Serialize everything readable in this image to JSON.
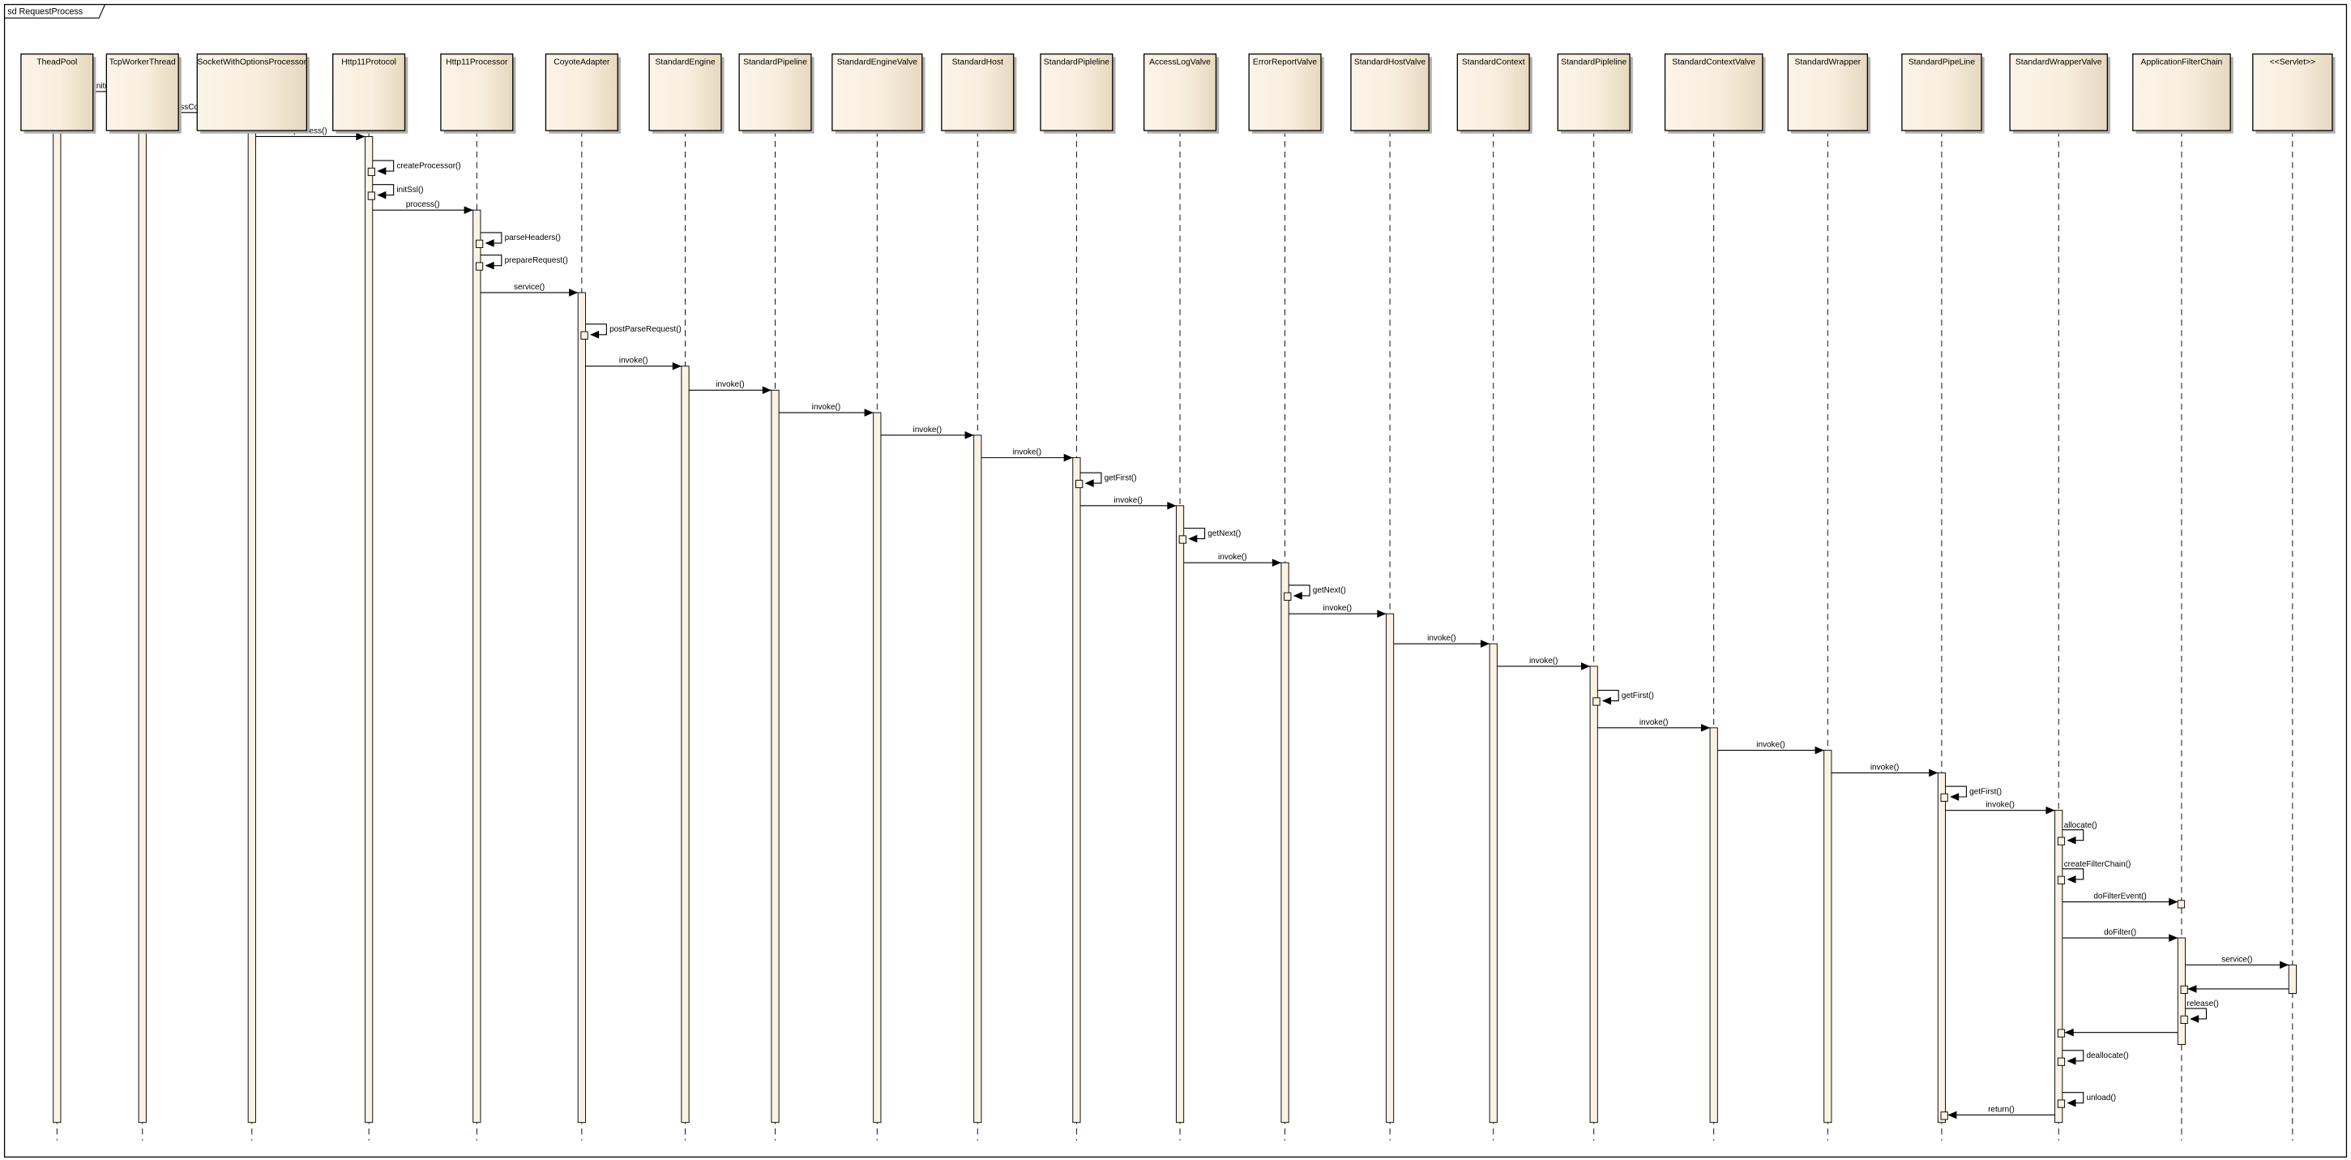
{
  "diagram": {
    "frame_title": "sd RequestProcess",
    "colors": {
      "participant_fill_light": "#fbf4e8",
      "participant_fill_dark": "#e6d8bf",
      "activation_fill": "#fbf2e4",
      "line": "#000000",
      "shadow": "#b0b0b0"
    },
    "participants": [
      "TheadPool",
      "TcpWorkerThread",
      "SocketWithOptionsProcessor",
      "Http11Protocol",
      "Http11Processor",
      "CoyoteAdapter",
      "StandardEngine",
      "StandardPipeline",
      "StandardEngineValve",
      "StandardHost",
      "StandardPipleline",
      "AccessLogValve",
      "ErrorReportValve",
      "StandardHostValve",
      "StandardContext",
      "StandardPipleline",
      "StandardContextValve",
      "StandardWrapper",
      "StandardPipeLine",
      "StandardWrapperValve",
      "ApplicationFilterChain",
      "<<Servlet>>"
    ],
    "messages": [
      {
        "label": "runit()",
        "from": 0,
        "to": 1
      },
      {
        "label": "processConnection()",
        "from": 1,
        "to": 2
      },
      {
        "label": "process()",
        "from": 2,
        "to": 3
      },
      {
        "label": "createProcessor()",
        "from": 3,
        "to": 3
      },
      {
        "label": "initSsl()",
        "from": 3,
        "to": 3
      },
      {
        "label": "process()",
        "from": 3,
        "to": 4
      },
      {
        "label": "parseHeaders()",
        "from": 4,
        "to": 4
      },
      {
        "label": "prepareRequest()",
        "from": 4,
        "to": 4
      },
      {
        "label": "service()",
        "from": 4,
        "to": 5
      },
      {
        "label": "postParseRequest()",
        "from": 5,
        "to": 5
      },
      {
        "label": "invoke()",
        "from": 5,
        "to": 6
      },
      {
        "label": "invoke()",
        "from": 6,
        "to": 7
      },
      {
        "label": "invoke()",
        "from": 7,
        "to": 8
      },
      {
        "label": "invoke()",
        "from": 8,
        "to": 9
      },
      {
        "label": "invoke()",
        "from": 9,
        "to": 10
      },
      {
        "label": "getFirst()",
        "from": 10,
        "to": 10
      },
      {
        "label": "invoke()",
        "from": 10,
        "to": 11
      },
      {
        "label": "getNext()",
        "from": 11,
        "to": 11
      },
      {
        "label": "invoke()",
        "from": 11,
        "to": 12
      },
      {
        "label": "getNext()",
        "from": 12,
        "to": 12
      },
      {
        "label": "invoke()",
        "from": 12,
        "to": 13
      },
      {
        "label": "invoke()",
        "from": 13,
        "to": 14
      },
      {
        "label": "invoke()",
        "from": 14,
        "to": 15
      },
      {
        "label": "getFirst()",
        "from": 15,
        "to": 15
      },
      {
        "label": "invoke()",
        "from": 15,
        "to": 16
      },
      {
        "label": "invoke()",
        "from": 16,
        "to": 17
      },
      {
        "label": "invoke()",
        "from": 17,
        "to": 18
      },
      {
        "label": "getFirst()",
        "from": 18,
        "to": 18
      },
      {
        "label": "invoke()",
        "from": 18,
        "to": 19
      },
      {
        "label": "allocate()",
        "from": 19,
        "to": 19
      },
      {
        "label": "createFilterChain()",
        "from": 19,
        "to": 19
      },
      {
        "label": "doFilterEvent()",
        "from": 19,
        "to": 20
      },
      {
        "label": "doFilter()",
        "from": 19,
        "to": 20
      },
      {
        "label": "service()",
        "from": 20,
        "to": 21
      },
      {
        "label": "",
        "from": 21,
        "to": 20,
        "return": true
      },
      {
        "label": "release()",
        "from": 20,
        "to": 20
      },
      {
        "label": "",
        "from": 20,
        "to": 19,
        "return": true
      },
      {
        "label": "deallocate()",
        "from": 19,
        "to": 19
      },
      {
        "label": "unload()",
        "from": 19,
        "to": 19
      },
      {
        "label": "return()",
        "from": 19,
        "to": 18,
        "return": true
      }
    ]
  }
}
